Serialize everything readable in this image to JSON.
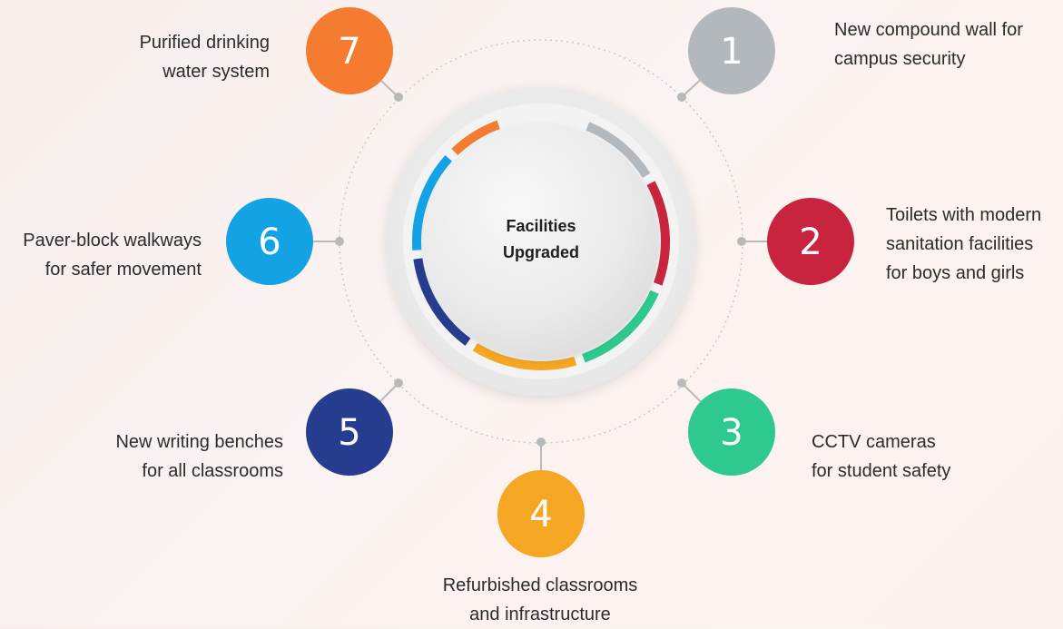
{
  "center": {
    "title_line1": "Facilities",
    "title_line2": "Upgraded"
  },
  "items": [
    {
      "number": "1",
      "color": "#b3b8bd",
      "line1": "New compound wall for",
      "line2": "campus security",
      "line3": ""
    },
    {
      "number": "2",
      "color": "#c9243f",
      "line1": "Toilets with modern",
      "line2": "sanitation facilities",
      "line3": "for boys and girls"
    },
    {
      "number": "3",
      "color": "#2ec98e",
      "line1": "CCTV cameras",
      "line2": "for student safety",
      "line3": ""
    },
    {
      "number": "4",
      "color": "#f5a623",
      "line1": "Refurbished classrooms",
      "line2": "and infrastructure",
      "line3": ""
    },
    {
      "number": "5",
      "color": "#263d8f",
      "line1": "New writing benches",
      "line2": "for all classrooms",
      "line3": ""
    },
    {
      "number": "6",
      "color": "#13a3e4",
      "line1": "Paver-block walkways",
      "line2": "for safer movement",
      "line3": ""
    },
    {
      "number": "7",
      "color": "#f47b2f",
      "line1": "Purified drinking",
      "line2": "water system",
      "line3": ""
    }
  ]
}
